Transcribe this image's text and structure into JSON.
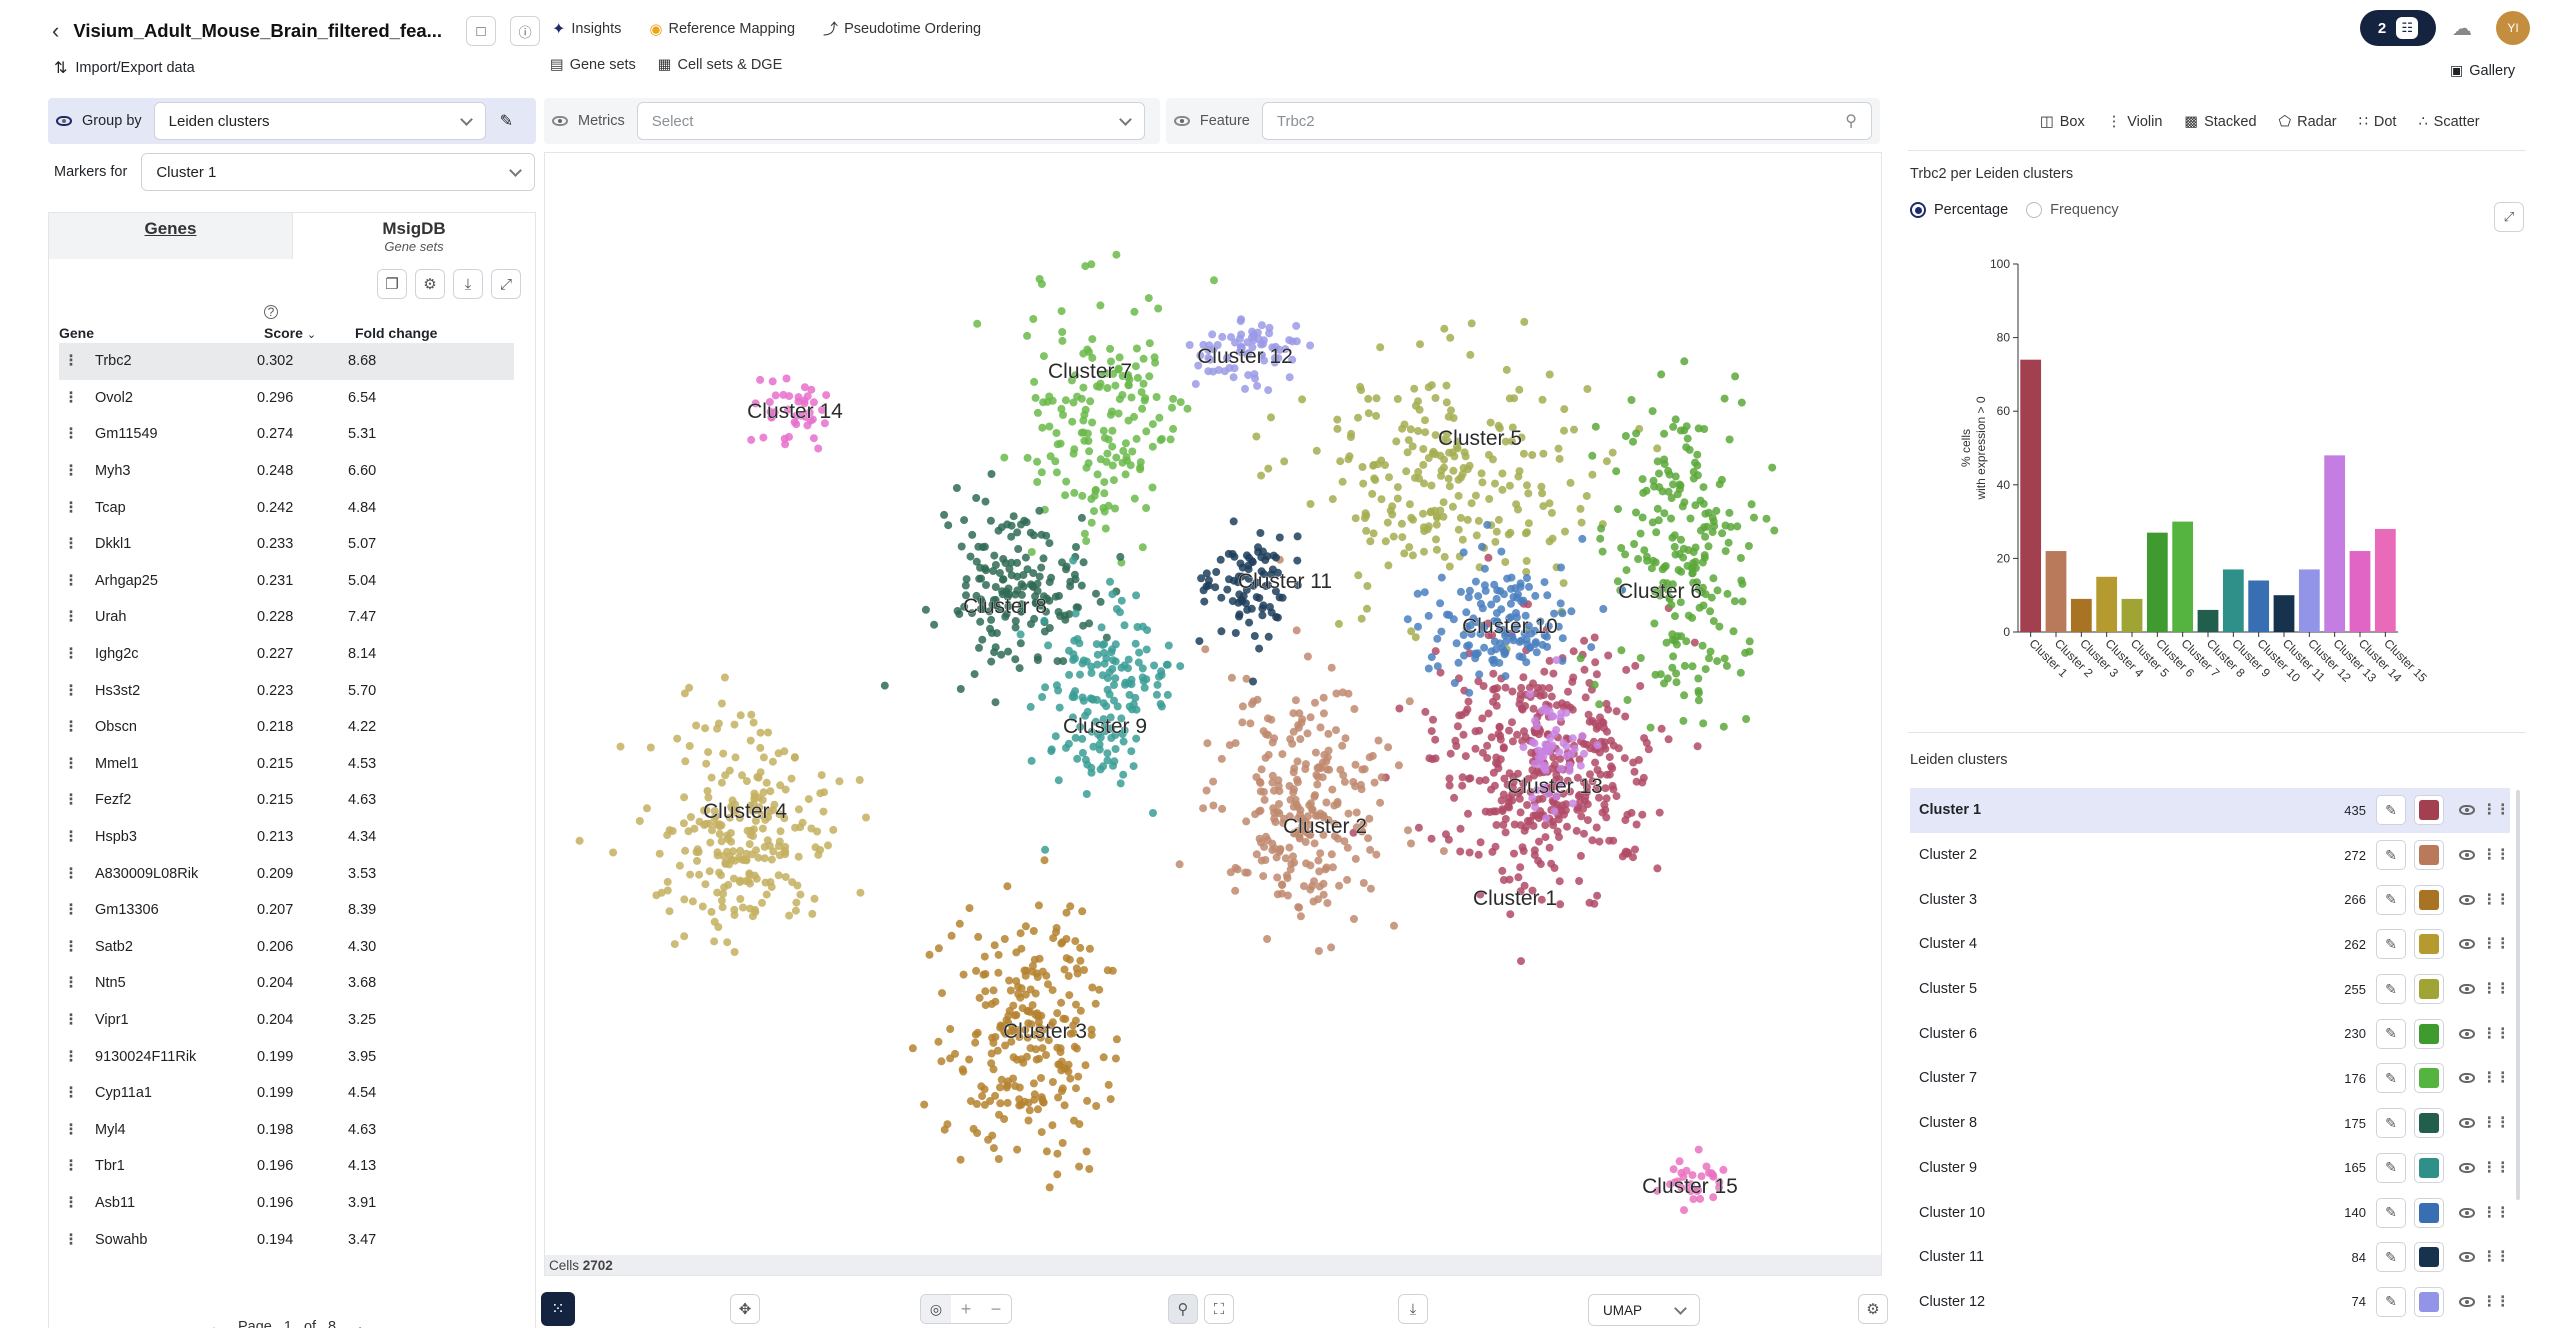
{
  "header": {
    "title": "Visium_Adult_Mouse_Brain_filtered_fea...",
    "import_export": "Import/Export data",
    "nav": [
      "Insights",
      "Reference Mapping",
      "Pseudotime Ordering"
    ],
    "subnav": [
      "Gene sets",
      "Cell sets & DGE"
    ],
    "badge_count": "2",
    "avatar": "YI",
    "gallery": "Gallery"
  },
  "controls": {
    "group_by_label": "Group by",
    "group_by_value": "Leiden clusters",
    "metrics_label": "Metrics",
    "metrics_placeholder": "Select",
    "feature_label": "Feature",
    "feature_placeholder": "Trbc2",
    "markers_for_label": "Markers for",
    "markers_for_value": "Cluster 1"
  },
  "markers": {
    "tabs": [
      {
        "label": "Genes",
        "sub": ""
      },
      {
        "label": "MsigDB",
        "sub": "Gene sets"
      }
    ],
    "columns": [
      "Gene",
      "Score",
      "Fold change"
    ],
    "rows": [
      {
        "gene": "Trbc2",
        "score": "0.302",
        "fc": "8.68"
      },
      {
        "gene": "Ovol2",
        "score": "0.296",
        "fc": "6.54"
      },
      {
        "gene": "Gm11549",
        "score": "0.274",
        "fc": "5.31"
      },
      {
        "gene": "Myh3",
        "score": "0.248",
        "fc": "6.60"
      },
      {
        "gene": "Tcap",
        "score": "0.242",
        "fc": "4.84"
      },
      {
        "gene": "Dkkl1",
        "score": "0.233",
        "fc": "5.07"
      },
      {
        "gene": "Arhgap25",
        "score": "0.231",
        "fc": "5.04"
      },
      {
        "gene": "Urah",
        "score": "0.228",
        "fc": "7.47"
      },
      {
        "gene": "Ighg2c",
        "score": "0.227",
        "fc": "8.14"
      },
      {
        "gene": "Hs3st2",
        "score": "0.223",
        "fc": "5.70"
      },
      {
        "gene": "Obscn",
        "score": "0.218",
        "fc": "4.22"
      },
      {
        "gene": "Mmel1",
        "score": "0.215",
        "fc": "4.53"
      },
      {
        "gene": "Fezf2",
        "score": "0.215",
        "fc": "4.63"
      },
      {
        "gene": "Hspb3",
        "score": "0.213",
        "fc": "4.34"
      },
      {
        "gene": "A830009L08Rik",
        "score": "0.209",
        "fc": "3.53"
      },
      {
        "gene": "Gm13306",
        "score": "0.207",
        "fc": "8.39"
      },
      {
        "gene": "Satb2",
        "score": "0.206",
        "fc": "4.30"
      },
      {
        "gene": "Ntn5",
        "score": "0.204",
        "fc": "3.68"
      },
      {
        "gene": "Vipr1",
        "score": "0.204",
        "fc": "3.25"
      },
      {
        "gene": "9130024F11Rik",
        "score": "0.199",
        "fc": "3.95"
      },
      {
        "gene": "Cyp11a1",
        "score": "0.199",
        "fc": "4.54"
      },
      {
        "gene": "Myl4",
        "score": "0.198",
        "fc": "4.63"
      },
      {
        "gene": "Tbr1",
        "score": "0.196",
        "fc": "4.13"
      },
      {
        "gene": "Asb11",
        "score": "0.196",
        "fc": "3.91"
      },
      {
        "gene": "Sowahb",
        "score": "0.194",
        "fc": "3.47"
      }
    ],
    "pagination": {
      "label": "Page",
      "current": "1",
      "of": "of",
      "total": "8"
    }
  },
  "embedding": {
    "cells_label": "Cells",
    "cells_count": "2702",
    "projection": "UMAP",
    "clusters": [
      {
        "name": "Cluster 1",
        "color": "#b24a66"
      },
      {
        "name": "Cluster 2",
        "color": "#c08a6e"
      },
      {
        "name": "Cluster 3",
        "color": "#b5832f"
      },
      {
        "name": "Cluster 4",
        "color": "#c4b060"
      },
      {
        "name": "Cluster 5",
        "color": "#a4ae50"
      },
      {
        "name": "Cluster 6",
        "color": "#5aa83a"
      },
      {
        "name": "Cluster 7",
        "color": "#6aba4a"
      },
      {
        "name": "Cluster 8",
        "color": "#2f6b55"
      },
      {
        "name": "Cluster 9",
        "color": "#3b9d97"
      },
      {
        "name": "Cluster 10",
        "color": "#4a7fc0"
      },
      {
        "name": "Cluster 11",
        "color": "#1e3e5c"
      },
      {
        "name": "Cluster 12",
        "color": "#9b9ae6"
      },
      {
        "name": "Cluster 13",
        "color": "#c984e2"
      },
      {
        "name": "Cluster 14",
        "color": "#e86fcd"
      },
      {
        "name": "Cluster 15",
        "color": "#ea72c0"
      }
    ]
  },
  "plot_types": [
    "Box",
    "Violin",
    "Stacked",
    "Radar",
    "Dot",
    "Scatter"
  ],
  "chart_data": {
    "type": "bar",
    "title": "Trbc2 per Leiden clusters",
    "modes": [
      "Percentage",
      "Frequency"
    ],
    "selected_mode": "Percentage",
    "ylabel": "% cells\nwith expression > 0",
    "xlabel": "",
    "ylim": [
      0,
      100
    ],
    "yticks": [
      "0",
      "20",
      "40",
      "60",
      "80",
      "100"
    ],
    "categories": [
      "Cluster 1",
      "Cluster 2",
      "Cluster 3",
      "Cluster 4",
      "Cluster 5",
      "Cluster 6",
      "Cluster 7",
      "Cluster 8",
      "Cluster 9",
      "Cluster 10",
      "Cluster 11",
      "Cluster 12",
      "Cluster 13",
      "Cluster 14",
      "Cluster 15"
    ],
    "values": [
      74,
      22,
      9,
      15,
      9,
      27,
      30,
      6,
      17,
      14,
      10,
      17,
      48,
      22,
      28
    ],
    "colors": [
      "#a3404f",
      "#b97a5c",
      "#a87424",
      "#b59a2f",
      "#a0a434",
      "#3f9a30",
      "#55b33f",
      "#225e4c",
      "#2e9089",
      "#386fb3",
      "#17324c",
      "#9294e8",
      "#c47de0",
      "#e065c5",
      "#e86ab9"
    ]
  },
  "legend": {
    "title": "Leiden clusters",
    "items": [
      {
        "name": "Cluster 1",
        "count": "435",
        "color": "#a3404f"
      },
      {
        "name": "Cluster 2",
        "count": "272",
        "color": "#b97a5c"
      },
      {
        "name": "Cluster 3",
        "count": "266",
        "color": "#a87424"
      },
      {
        "name": "Cluster 4",
        "count": "262",
        "color": "#b59a2f"
      },
      {
        "name": "Cluster 5",
        "count": "255",
        "color": "#a0a434"
      },
      {
        "name": "Cluster 6",
        "count": "230",
        "color": "#3f9a30"
      },
      {
        "name": "Cluster 7",
        "count": "176",
        "color": "#55b33f"
      },
      {
        "name": "Cluster 8",
        "count": "175",
        "color": "#225e4c"
      },
      {
        "name": "Cluster 9",
        "count": "165",
        "color": "#2e9089"
      },
      {
        "name": "Cluster 10",
        "count": "140",
        "color": "#386fb3"
      },
      {
        "name": "Cluster 11",
        "count": "84",
        "color": "#17324c"
      },
      {
        "name": "Cluster 12",
        "count": "74",
        "color": "#9294e8"
      }
    ]
  }
}
